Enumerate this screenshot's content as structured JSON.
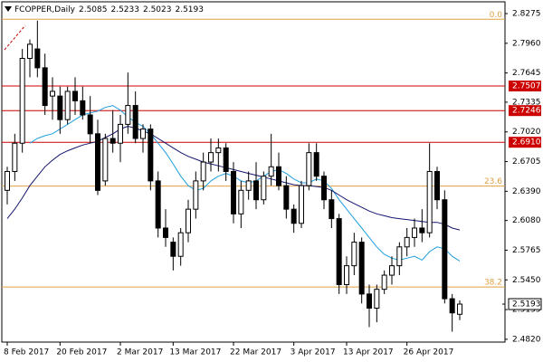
{
  "chart_data": {
    "type": "candlestick",
    "symbol": "FCOPPER,Daily",
    "categories": [
      "8 Feb 2017",
      null,
      null,
      null,
      null,
      null,
      null,
      "20 Feb 2017",
      null,
      null,
      null,
      null,
      null,
      null,
      null,
      "2 Mar 2017",
      null,
      null,
      null,
      null,
      null,
      null,
      "13 Mar 2017",
      null,
      null,
      null,
      null,
      null,
      null,
      null,
      "22 Mar 2017",
      null,
      null,
      null,
      null,
      null,
      null,
      null,
      "3 Apr 2017",
      null,
      null,
      null,
      null,
      null,
      null,
      "13 Apr 2017",
      null,
      null,
      null,
      null,
      null,
      null,
      null,
      "26 Apr 2017",
      null,
      null,
      null,
      null,
      null,
      null,
      null
    ],
    "candles": {
      "open": [
        2.64,
        2.66,
        2.69,
        2.78,
        2.79,
        2.77,
        2.74,
        2.74,
        2.715,
        2.745,
        2.735,
        2.72,
        2.7,
        2.65,
        2.695,
        2.69,
        2.71,
        2.73,
        2.695,
        2.705,
        2.65,
        2.6,
        2.585,
        2.57,
        2.595,
        2.62,
        2.65,
        2.67,
        2.68,
        2.685,
        2.66,
        2.615,
        2.64,
        2.65,
        2.63,
        2.655,
        2.665,
        2.645,
        2.62,
        2.605,
        2.645,
        2.68,
        2.655,
        2.63,
        2.61,
        2.54,
        2.56,
        2.585,
        2.53,
        2.515,
        2.535,
        2.55,
        2.56,
        2.58,
        2.59,
        2.6,
        2.595,
        2.66,
        2.63,
        2.525,
        2.5085
      ],
      "high": [
        2.665,
        2.7,
        2.79,
        2.8,
        2.82,
        2.785,
        2.76,
        2.75,
        2.75,
        2.76,
        2.75,
        2.74,
        2.715,
        2.7,
        2.725,
        2.72,
        2.765,
        2.745,
        2.71,
        2.71,
        2.66,
        2.62,
        2.59,
        2.6,
        2.63,
        2.66,
        2.68,
        2.695,
        2.695,
        2.69,
        2.67,
        2.65,
        2.66,
        2.67,
        2.66,
        2.7,
        2.68,
        2.655,
        2.625,
        2.65,
        2.69,
        2.69,
        2.66,
        2.64,
        2.615,
        2.57,
        2.595,
        2.59,
        2.54,
        2.54,
        2.555,
        2.57,
        2.585,
        2.6,
        2.61,
        2.62,
        2.69,
        2.665,
        2.64,
        2.53,
        2.5233
      ],
      "low": [
        2.625,
        2.65,
        2.68,
        2.76,
        2.76,
        2.72,
        2.715,
        2.7,
        2.71,
        2.72,
        2.715,
        2.69,
        2.635,
        2.645,
        2.68,
        2.67,
        2.7,
        2.69,
        2.68,
        2.64,
        2.59,
        2.58,
        2.555,
        2.56,
        2.585,
        2.61,
        2.64,
        2.66,
        2.66,
        2.65,
        2.605,
        2.6,
        2.63,
        2.62,
        2.625,
        2.645,
        2.64,
        2.61,
        2.595,
        2.6,
        2.64,
        2.65,
        2.62,
        2.6,
        2.53,
        2.53,
        2.55,
        2.52,
        2.495,
        2.5,
        2.53,
        2.54,
        2.55,
        2.57,
        2.58,
        2.585,
        2.59,
        2.62,
        2.52,
        2.49,
        2.5023
      ],
      "close": [
        2.66,
        2.69,
        2.78,
        2.795,
        2.77,
        2.73,
        2.745,
        2.715,
        2.745,
        2.735,
        2.72,
        2.7,
        2.64,
        2.695,
        2.69,
        2.71,
        2.73,
        2.695,
        2.705,
        2.65,
        2.6,
        2.59,
        2.57,
        2.595,
        2.62,
        2.65,
        2.67,
        2.68,
        2.685,
        2.66,
        2.615,
        2.64,
        2.65,
        2.63,
        2.655,
        2.665,
        2.645,
        2.62,
        2.605,
        2.645,
        2.68,
        2.655,
        2.63,
        2.61,
        2.54,
        2.56,
        2.585,
        2.53,
        2.515,
        2.535,
        2.55,
        2.56,
        2.58,
        2.59,
        2.6,
        2.595,
        2.66,
        2.63,
        2.525,
        2.51,
        2.5193
      ]
    },
    "series": [
      {
        "color": "#1f9fe0",
        "values": [
          null,
          null,
          null,
          2.69,
          2.695,
          2.698,
          2.7,
          2.705,
          2.71,
          2.715,
          2.72,
          2.722,
          2.724,
          2.728,
          2.73,
          2.725,
          2.718,
          2.712,
          2.708,
          2.7,
          2.69,
          2.68,
          2.668,
          2.655,
          2.645,
          2.64,
          2.642,
          2.65,
          2.655,
          2.658,
          2.655,
          2.65,
          2.648,
          2.65,
          2.655,
          2.66,
          2.662,
          2.658,
          2.652,
          2.648,
          2.648,
          2.652,
          2.65,
          2.642,
          2.63,
          2.62,
          2.61,
          2.6,
          2.59,
          2.58,
          2.572,
          2.568,
          2.566,
          2.568,
          2.57,
          2.566,
          2.575,
          2.58,
          2.578,
          2.57,
          2.565
        ]
      },
      {
        "color": "#14146e",
        "values": [
          2.61,
          2.62,
          2.632,
          2.645,
          2.655,
          2.665,
          2.672,
          2.678,
          2.682,
          2.685,
          2.688,
          2.69,
          2.692,
          2.696,
          2.7,
          2.705,
          2.708,
          2.706,
          2.703,
          2.7,
          2.695,
          2.69,
          2.685,
          2.68,
          2.676,
          2.673,
          2.67,
          2.668,
          2.666,
          2.664,
          2.662,
          2.66,
          2.658,
          2.656,
          2.654,
          2.652,
          2.65,
          2.648,
          2.646,
          2.645,
          2.645,
          2.644,
          2.643,
          2.64,
          2.635,
          2.63,
          2.626,
          2.622,
          2.618,
          2.615,
          2.613,
          2.611,
          2.61,
          2.609,
          2.608,
          2.607,
          2.606,
          2.606,
          2.604,
          2.6,
          2.598
        ]
      }
    ],
    "levels": [
      {
        "value": 2.7507,
        "label": "2.7507",
        "color": "#cc0000"
      },
      {
        "value": 2.7246,
        "label": "2.7246",
        "color": "#cc0000"
      },
      {
        "value": 2.691,
        "label": "2.6910",
        "color": "#cc0000"
      }
    ],
    "fib_levels": [
      {
        "value": 2.8215,
        "label": "0.0"
      },
      {
        "value": 2.6445,
        "label": "23.6"
      },
      {
        "value": 2.5375,
        "label": "38.2"
      }
    ],
    "fib_color": "#e0a040",
    "last_price": {
      "value": 2.5193,
      "label": "2.5193"
    },
    "ylim": [
      2.479,
      2.84
    ],
    "yticks": [
      2.8275,
      {
        "value": 2.796,
        "label": "2.7960"
      },
      2.7645,
      2.7335,
      {
        "value": 2.702,
        "label": "2.7020"
      },
      2.6705,
      {
        "value": 2.639,
        "label": "2.6390"
      },
      {
        "value": 2.608,
        "label": "2.6080"
      },
      2.5765,
      {
        "value": 2.545,
        "label": "2.5450"
      },
      2.5135,
      {
        "value": 2.482,
        "label": "2.4820"
      }
    ]
  }
}
